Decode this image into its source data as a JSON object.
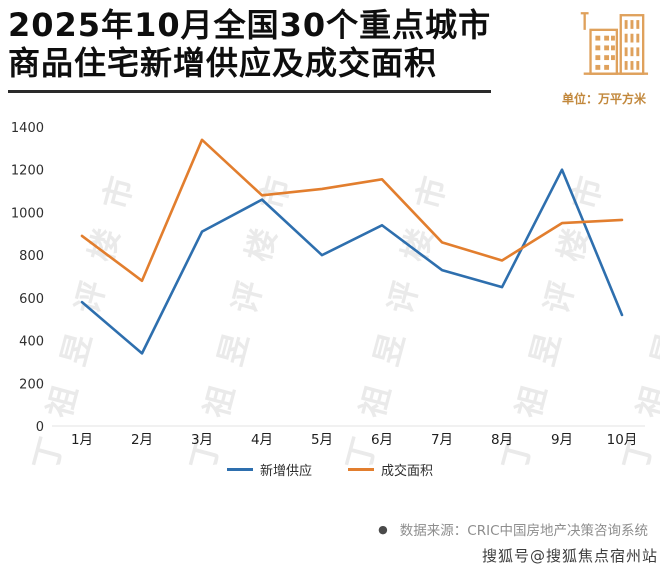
{
  "header": {
    "title_line1": "2025年10月全国30个重点城市",
    "title_line2": "商品住宅新增供应及成交面积",
    "unit_label": "单位：万平方米"
  },
  "chart_data": {
    "type": "line",
    "title": "2025年10月全国30个重点城市商品住宅新增供应及成交面积",
    "unit": "万平方米",
    "categories": [
      "1月",
      "2月",
      "3月",
      "4月",
      "5月",
      "6月",
      "7月",
      "8月",
      "9月",
      "10月"
    ],
    "series": [
      {
        "name": "新增供应",
        "color": "#2e6fae",
        "values": [
          580,
          340,
          910,
          1060,
          800,
          940,
          730,
          650,
          1200,
          520
        ]
      },
      {
        "name": "成交面积",
        "color": "#e27e2e",
        "values": [
          890,
          680,
          1340,
          1080,
          1110,
          1155,
          860,
          775,
          950,
          965
        ]
      }
    ],
    "ylim": [
      0,
      1400
    ],
    "ytick_step": 200,
    "grid": false,
    "legend_position": "bottom"
  },
  "watermark": {
    "text": "丁祖昱评楼市"
  },
  "footer": {
    "bullet": "●",
    "source": "数据来源：CRIC中国房地产决策咨询系统"
  },
  "overlay": {
    "sohu_watermark": "搜狐号@搜狐焦点宿州站"
  }
}
